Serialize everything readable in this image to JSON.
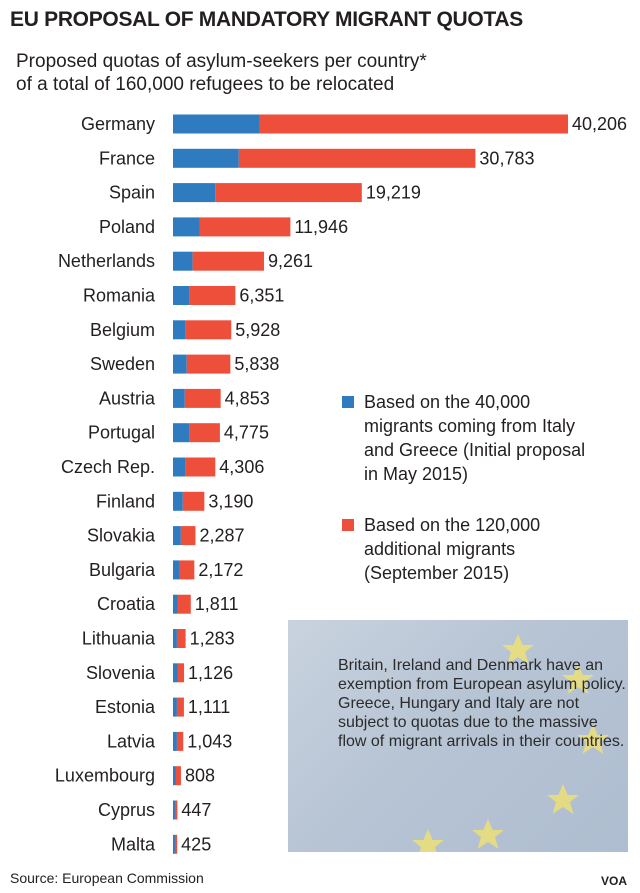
{
  "title": "EU PROPOSAL OF MANDATORY MIGRANT QUOTAS",
  "subtitle_line1": "Proposed quotas of asylum-seekers per country*",
  "subtitle_line2": "of a total of 160,000 refugees to be relocated",
  "chart_data": {
    "type": "bar",
    "orientation": "horizontal",
    "stacked": true,
    "categories": [
      "Germany",
      "France",
      "Spain",
      "Poland",
      "Netherlands",
      "Romania",
      "Belgium",
      "Sweden",
      "Austria",
      "Portugal",
      "Czech Rep.",
      "Finland",
      "Slovakia",
      "Bulgaria",
      "Croatia",
      "Lithuania",
      "Slovenia",
      "Estonia",
      "Latvia",
      "Luxembourg",
      "Cyprus",
      "Malta"
    ],
    "totals": [
      40206,
      30783,
      19219,
      11946,
      9261,
      6351,
      5928,
      5838,
      4853,
      4775,
      4306,
      3190,
      2287,
      2172,
      1811,
      1283,
      1126,
      1111,
      1043,
      808,
      447,
      425
    ],
    "total_labels": [
      "40,206",
      "30,783",
      "19,219",
      "11,946",
      "9,261",
      "6,351",
      "5,928",
      "5,838",
      "4,853",
      "4,775",
      "4,306",
      "3,190",
      "2,287",
      "2,172",
      "1,811",
      "1,283",
      "1,126",
      "1,111",
      "1,043",
      "808",
      "447",
      "425"
    ],
    "series": [
      {
        "name": "Based on the 40,000 migrants coming from Italy and Greece (Initial proposal in May 2015)",
        "color": "#2f7bbf",
        "values": [
          8800,
          6700,
          4300,
          2700,
          2000,
          1700,
          1300,
          1400,
          1200,
          1700,
          1300,
          1000,
          800,
          700,
          500,
          400,
          500,
          400,
          400,
          300,
          200,
          200
        ]
      },
      {
        "name": "Based on the 120,000 additional migrants (September 2015)",
        "color": "#ee4f3a",
        "values": [
          31406,
          24083,
          14919,
          9246,
          7261,
          4651,
          4628,
          4438,
          3653,
          3075,
          3006,
          2190,
          1487,
          1472,
          1311,
          883,
          626,
          711,
          643,
          508,
          247,
          225
        ]
      }
    ],
    "xlim": [
      0,
      40206
    ]
  },
  "legend": {
    "item1": "Based on the 40,000 migrants coming from Italy and Greece (Initial proposal in May 2015)",
    "item2": "Based on the 120,000 additional migrants (September 2015)"
  },
  "note": "Britain, Ireland and Denmark have an exemption from European asylum policy. Greece, Hungary and Italy are not subject to quotas due to the massive flow of migrant arrivals in their countries.",
  "source": "Source: European Commission",
  "credit": "VOA"
}
